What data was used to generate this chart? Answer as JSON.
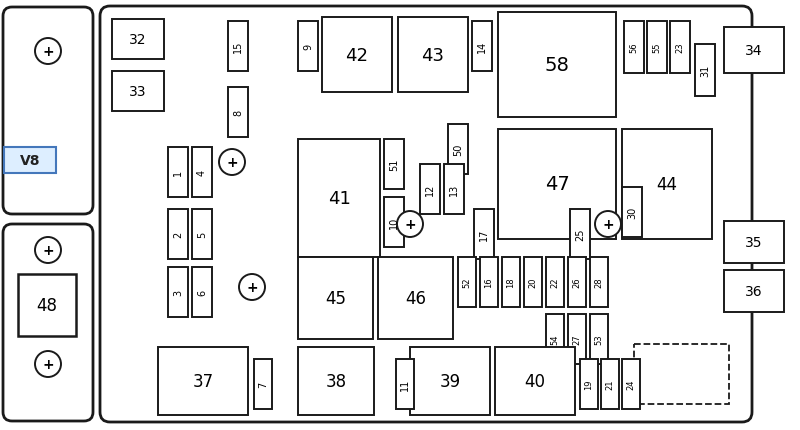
{
  "bg_color": "#ffffff",
  "ec": "#1a1a1a",
  "fig_width": 8.0,
  "fig_height": 4.31
}
